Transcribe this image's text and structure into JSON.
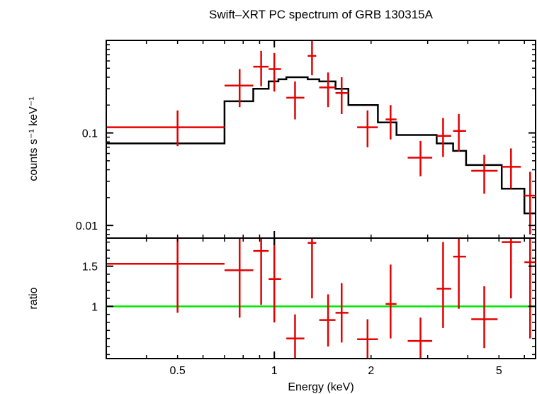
{
  "chart_data": {
    "type": "scatter",
    "title": "Swift–XRT PC spectrum of GRB 130315A",
    "xlabel": "Energy (keV)",
    "x_scale": "log",
    "xlim": [
      0.3,
      6.5
    ],
    "x_tick_labels": [
      {
        "value": 0.5,
        "label": "0.5"
      },
      {
        "value": 1,
        "label": "1"
      },
      {
        "value": 2,
        "label": "2"
      },
      {
        "value": 5,
        "label": "5"
      }
    ],
    "panels": [
      {
        "name": "spectrum",
        "ylabel": "counts s⁻¹ keV⁻¹",
        "y_scale": "log",
        "ylim": [
          0.0073,
          1.0
        ],
        "y_tick_labels": [
          {
            "value": 0.1,
            "label": "0.1"
          },
          {
            "value": 0.01,
            "label": "0.01"
          }
        ],
        "data_color": "#e50000",
        "model_color": "#000000",
        "data": [
          {
            "x": 0.5,
            "x_lo": 0.3,
            "x_hi": 0.7,
            "y": 0.115,
            "y_lo": 0.072,
            "y_hi": 0.175
          },
          {
            "x": 0.78,
            "x_lo": 0.7,
            "x_hi": 0.86,
            "y": 0.325,
            "y_lo": 0.19,
            "y_hi": 0.49
          },
          {
            "x": 0.91,
            "x_lo": 0.86,
            "x_hi": 0.96,
            "y": 0.52,
            "y_lo": 0.32,
            "y_hi": 0.77
          },
          {
            "x": 1.0,
            "x_lo": 0.96,
            "x_hi": 1.05,
            "y": 0.49,
            "y_lo": 0.28,
            "y_hi": 0.73
          },
          {
            "x": 1.16,
            "x_lo": 1.09,
            "x_hi": 1.24,
            "y": 0.24,
            "y_lo": 0.14,
            "y_hi": 0.36
          },
          {
            "x": 1.31,
            "x_lo": 1.27,
            "x_hi": 1.35,
            "y": 0.68,
            "y_lo": 0.42,
            "y_hi": 1.0
          },
          {
            "x": 1.47,
            "x_lo": 1.38,
            "x_hi": 1.55,
            "y": 0.31,
            "y_lo": 0.19,
            "y_hi": 0.45
          },
          {
            "x": 1.62,
            "x_lo": 1.55,
            "x_hi": 1.7,
            "y": 0.27,
            "y_lo": 0.16,
            "y_hi": 0.4
          },
          {
            "x": 1.95,
            "x_lo": 1.81,
            "x_hi": 2.1,
            "y": 0.115,
            "y_lo": 0.07,
            "y_hi": 0.175
          },
          {
            "x": 2.3,
            "x_lo": 2.22,
            "x_hi": 2.4,
            "y": 0.14,
            "y_lo": 0.085,
            "y_hi": 0.2
          },
          {
            "x": 2.85,
            "x_lo": 2.6,
            "x_hi": 3.1,
            "y": 0.054,
            "y_lo": 0.034,
            "y_hi": 0.082
          },
          {
            "x": 3.35,
            "x_lo": 3.2,
            "x_hi": 3.55,
            "y": 0.093,
            "y_lo": 0.055,
            "y_hi": 0.145
          },
          {
            "x": 3.75,
            "x_lo": 3.6,
            "x_hi": 3.95,
            "y": 0.105,
            "y_lo": 0.063,
            "y_hi": 0.16
          },
          {
            "x": 4.5,
            "x_lo": 4.1,
            "x_hi": 4.95,
            "y": 0.039,
            "y_lo": 0.022,
            "y_hi": 0.058
          },
          {
            "x": 5.45,
            "x_lo": 5.1,
            "x_hi": 5.85,
            "y": 0.043,
            "y_lo": 0.025,
            "y_hi": 0.068
          },
          {
            "x": 6.25,
            "x_lo": 6.0,
            "x_hi": 6.5,
            "y": 0.021,
            "y_lo": 0.008,
            "y_hi": 0.038
          }
        ],
        "model_steps": [
          {
            "x0": 0.3,
            "x1": 0.7,
            "y": 0.077
          },
          {
            "x0": 0.7,
            "x1": 0.86,
            "y": 0.22
          },
          {
            "x0": 0.86,
            "x1": 0.96,
            "y": 0.3
          },
          {
            "x0": 0.96,
            "x1": 1.03,
            "y": 0.36
          },
          {
            "x0": 1.03,
            "x1": 1.09,
            "y": 0.38
          },
          {
            "x0": 1.09,
            "x1": 1.27,
            "y": 0.4
          },
          {
            "x0": 1.27,
            "x1": 1.38,
            "y": 0.38
          },
          {
            "x0": 1.38,
            "x1": 1.55,
            "y": 0.36
          },
          {
            "x0": 1.55,
            "x1": 1.7,
            "y": 0.3
          },
          {
            "x0": 1.7,
            "x1": 2.1,
            "y": 0.2
          },
          {
            "x0": 2.1,
            "x1": 2.4,
            "y": 0.13
          },
          {
            "x0": 2.4,
            "x1": 3.2,
            "y": 0.095
          },
          {
            "x0": 3.2,
            "x1": 3.6,
            "y": 0.077
          },
          {
            "x0": 3.6,
            "x1": 3.95,
            "y": 0.064
          },
          {
            "x0": 3.95,
            "x1": 5.1,
            "y": 0.045
          },
          {
            "x0": 5.1,
            "x1": 6.0,
            "y": 0.025
          },
          {
            "x0": 6.0,
            "x1": 6.5,
            "y": 0.0135
          }
        ]
      },
      {
        "name": "ratio",
        "ylabel": "ratio",
        "y_scale": "linear",
        "ylim": [
          0.35,
          1.85
        ],
        "y_tick_labels": [
          {
            "value": 1,
            "label": "1"
          },
          {
            "value": 1.5,
            "label": "1.5"
          }
        ],
        "reference_line": {
          "y": 1.0,
          "color": "#00e600"
        },
        "data_color": "#e50000",
        "data": [
          {
            "x": 0.5,
            "x_lo": 0.3,
            "x_hi": 0.7,
            "y": 1.53,
            "y_lo": 0.92,
            "y_hi": 2.2
          },
          {
            "x": 0.78,
            "x_lo": 0.7,
            "x_hi": 0.86,
            "y": 1.45,
            "y_lo": 0.86,
            "y_hi": 2.1
          },
          {
            "x": 0.91,
            "x_lo": 0.86,
            "x_hi": 0.96,
            "y": 1.69,
            "y_lo": 1.02,
            "y_hi": 2.35
          },
          {
            "x": 1.0,
            "x_lo": 0.96,
            "x_hi": 1.05,
            "y": 1.34,
            "y_lo": 0.8,
            "y_hi": 2.0
          },
          {
            "x": 1.16,
            "x_lo": 1.09,
            "x_hi": 1.24,
            "y": 0.6,
            "y_lo": 0.35,
            "y_hi": 0.9
          },
          {
            "x": 1.31,
            "x_lo": 1.27,
            "x_hi": 1.35,
            "y": 1.79,
            "y_lo": 1.1,
            "y_hi": 2.5
          },
          {
            "x": 1.47,
            "x_lo": 1.38,
            "x_hi": 1.55,
            "y": 0.83,
            "y_lo": 0.5,
            "y_hi": 1.15
          },
          {
            "x": 1.62,
            "x_lo": 1.55,
            "x_hi": 1.7,
            "y": 0.92,
            "y_lo": 0.55,
            "y_hi": 1.29
          },
          {
            "x": 1.95,
            "x_lo": 1.81,
            "x_hi": 2.1,
            "y": 0.59,
            "y_lo": 0.35,
            "y_hi": 0.84
          },
          {
            "x": 2.3,
            "x_lo": 2.22,
            "x_hi": 2.4,
            "y": 1.03,
            "y_lo": 0.6,
            "y_hi": 1.52
          },
          {
            "x": 2.85,
            "x_lo": 2.6,
            "x_hi": 3.1,
            "y": 0.57,
            "y_lo": 0.35,
            "y_hi": 0.86
          },
          {
            "x": 3.35,
            "x_lo": 3.2,
            "x_hi": 3.55,
            "y": 1.22,
            "y_lo": 0.73,
            "y_hi": 1.8
          },
          {
            "x": 3.75,
            "x_lo": 3.6,
            "x_hi": 3.95,
            "y": 1.62,
            "y_lo": 0.97,
            "y_hi": 2.3
          },
          {
            "x": 4.5,
            "x_lo": 4.1,
            "x_hi": 4.95,
            "y": 0.84,
            "y_lo": 0.48,
            "y_hi": 1.25
          },
          {
            "x": 5.45,
            "x_lo": 5.1,
            "x_hi": 5.85,
            "y": 1.8,
            "y_lo": 1.1,
            "y_hi": 2.6
          },
          {
            "x": 6.25,
            "x_lo": 6.0,
            "x_hi": 6.5,
            "y": 1.55,
            "y_lo": 0.6,
            "y_hi": 2.5
          }
        ]
      }
    ]
  }
}
